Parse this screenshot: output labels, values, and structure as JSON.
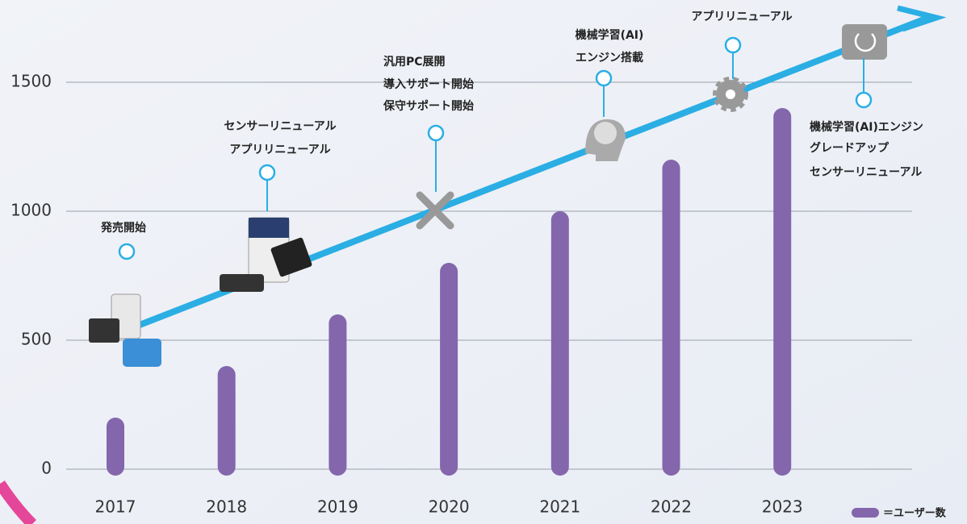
{
  "chart_data": {
    "type": "bar",
    "categories": [
      "2017",
      "2018",
      "2019",
      "2020",
      "2021",
      "2022",
      "2023"
    ],
    "series": [
      {
        "name": "＝ユーザー数",
        "color": "#8466ad",
        "values": [
          200,
          400,
          600,
          800,
          1000,
          1200,
          1400
        ]
      }
    ],
    "ylim": [
      0,
      1500
    ],
    "yticks": [
      0,
      500,
      1000,
      1500
    ],
    "grid": true,
    "annotations": [
      [
        "発売開始"
      ],
      [
        "センサーリニューアル",
        "アプリリニューアル"
      ],
      [
        "汎用PC展開",
        "導入サポート開始",
        "保守サポート開始"
      ],
      [
        "機械学習(AI)",
        "エンジン搭載"
      ],
      [
        "アプリリニューアル"
      ],
      [
        "機械学習(AI)エンジン",
        "グレードアップ",
        "センサーリニューアル"
      ]
    ]
  }
}
